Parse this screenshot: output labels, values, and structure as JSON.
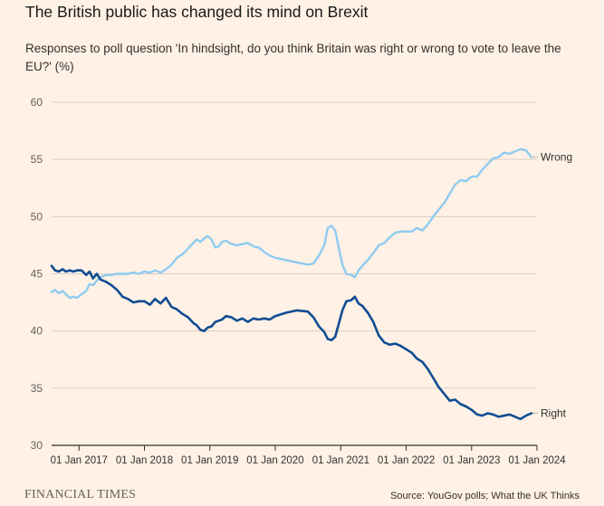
{
  "title": "The British public has changed its mind on Brexit",
  "subtitle": "Responses to poll question 'In hindsight, do you think Britain was right or wrong to vote to leave the EU?' (%)",
  "footer": {
    "brand": "FINANCIAL TIMES",
    "source": "Source: YouGov polls; What the UK Thinks"
  },
  "colors": {
    "background": "#fff1e5",
    "right": "#0f4c92",
    "wrong": "#8ecbf0",
    "grid": "#d9cdc3",
    "axis": "#33302e"
  },
  "chart_data": {
    "type": "line",
    "title": "",
    "xlabel": "",
    "ylabel": "",
    "ylim": [
      30,
      60
    ],
    "xlim": [
      "2016-08-01",
      "2024-01-01"
    ],
    "y_ticks": [
      "30",
      "35",
      "40",
      "45",
      "50",
      "55",
      "60"
    ],
    "x_ticks": [
      "01 Jan 2017",
      "01 Jan 2018",
      "01 Jan 2019",
      "01 Jan 2020",
      "01 Jan 2021",
      "01 Jan 2022",
      "01 Jan 2023",
      "01 Jan 2024"
    ],
    "grid": true,
    "legend": "direct-labels-right",
    "series": [
      {
        "name": "Wrong",
        "color": "#8ecbf0",
        "points": [
          [
            "2016-08-01",
            43.4
          ],
          [
            "2016-08-20",
            43.6
          ],
          [
            "2016-09-10",
            43.3
          ],
          [
            "2016-10-01",
            43.5
          ],
          [
            "2016-10-20",
            43.2
          ],
          [
            "2016-11-10",
            42.9
          ],
          [
            "2016-12-01",
            43.0
          ],
          [
            "2016-12-20",
            42.9
          ],
          [
            "2017-01-15",
            43.2
          ],
          [
            "2017-02-10",
            43.5
          ],
          [
            "2017-03-01",
            44.1
          ],
          [
            "2017-03-20",
            44.0
          ],
          [
            "2017-04-10",
            44.4
          ],
          [
            "2017-05-01",
            44.7
          ],
          [
            "2017-06-01",
            44.9
          ],
          [
            "2017-07-01",
            44.9
          ],
          [
            "2017-08-01",
            45.0
          ],
          [
            "2017-09-01",
            45.0
          ],
          [
            "2017-10-01",
            45.0
          ],
          [
            "2017-11-01",
            45.1
          ],
          [
            "2017-12-01",
            45.0
          ],
          [
            "2018-01-01",
            45.2
          ],
          [
            "2018-02-01",
            45.1
          ],
          [
            "2018-03-01",
            45.3
          ],
          [
            "2018-04-01",
            45.1
          ],
          [
            "2018-05-01",
            45.4
          ],
          [
            "2018-06-01",
            45.8
          ],
          [
            "2018-07-01",
            46.4
          ],
          [
            "2018-08-01",
            46.7
          ],
          [
            "2018-09-01",
            47.2
          ],
          [
            "2018-10-01",
            47.7
          ],
          [
            "2018-10-20",
            48.0
          ],
          [
            "2018-11-10",
            47.8
          ],
          [
            "2018-12-01",
            48.1
          ],
          [
            "2018-12-20",
            48.3
          ],
          [
            "2019-01-10",
            48.0
          ],
          [
            "2019-02-01",
            47.3
          ],
          [
            "2019-02-20",
            47.4
          ],
          [
            "2019-03-10",
            47.8
          ],
          [
            "2019-04-01",
            47.9
          ],
          [
            "2019-05-01",
            47.6
          ],
          [
            "2019-06-01",
            47.5
          ],
          [
            "2019-07-01",
            47.6
          ],
          [
            "2019-08-01",
            47.7
          ],
          [
            "2019-09-01",
            47.4
          ],
          [
            "2019-10-01",
            47.3
          ],
          [
            "2019-11-01",
            46.9
          ],
          [
            "2019-12-01",
            46.6
          ],
          [
            "2020-01-01",
            46.4
          ],
          [
            "2020-03-01",
            46.2
          ],
          [
            "2020-05-01",
            46.0
          ],
          [
            "2020-07-01",
            45.8
          ],
          [
            "2020-08-01",
            45.9
          ],
          [
            "2020-09-01",
            46.6
          ],
          [
            "2020-10-01",
            47.5
          ],
          [
            "2020-10-20",
            49.0
          ],
          [
            "2020-11-10",
            49.2
          ],
          [
            "2020-12-01",
            48.8
          ],
          [
            "2020-12-20",
            47.3
          ],
          [
            "2021-01-10",
            45.8
          ],
          [
            "2021-02-01",
            45.0
          ],
          [
            "2021-03-01",
            44.9
          ],
          [
            "2021-03-20",
            44.7
          ],
          [
            "2021-04-10",
            45.3
          ],
          [
            "2021-05-01",
            45.7
          ],
          [
            "2021-06-01",
            46.2
          ],
          [
            "2021-07-01",
            46.8
          ],
          [
            "2021-08-01",
            47.5
          ],
          [
            "2021-09-01",
            47.7
          ],
          [
            "2021-10-01",
            48.2
          ],
          [
            "2021-11-01",
            48.6
          ],
          [
            "2021-12-01",
            48.7
          ],
          [
            "2022-01-01",
            48.7
          ],
          [
            "2022-02-01",
            48.7
          ],
          [
            "2022-03-01",
            49.0
          ],
          [
            "2022-04-01",
            48.8
          ],
          [
            "2022-05-01",
            49.3
          ],
          [
            "2022-06-01",
            50.0
          ],
          [
            "2022-07-01",
            50.6
          ],
          [
            "2022-08-01",
            51.2
          ],
          [
            "2022-09-01",
            52.0
          ],
          [
            "2022-10-01",
            52.8
          ],
          [
            "2022-11-01",
            53.2
          ],
          [
            "2022-12-01",
            53.1
          ],
          [
            "2023-01-01",
            53.5
          ],
          [
            "2023-02-01",
            53.5
          ],
          [
            "2023-03-01",
            54.1
          ],
          [
            "2023-04-01",
            54.6
          ],
          [
            "2023-05-01",
            55.1
          ],
          [
            "2023-06-01",
            55.2
          ],
          [
            "2023-07-01",
            55.6
          ],
          [
            "2023-08-01",
            55.5
          ],
          [
            "2023-09-01",
            55.7
          ],
          [
            "2023-10-01",
            55.9
          ],
          [
            "2023-11-01",
            55.8
          ],
          [
            "2023-12-01",
            55.2
          ]
        ]
      },
      {
        "name": "Right",
        "color": "#0f4c92",
        "points": [
          [
            "2016-08-01",
            45.7
          ],
          [
            "2016-08-20",
            45.3
          ],
          [
            "2016-09-10",
            45.2
          ],
          [
            "2016-10-01",
            45.4
          ],
          [
            "2016-10-20",
            45.2
          ],
          [
            "2016-11-10",
            45.3
          ],
          [
            "2016-12-01",
            45.2
          ],
          [
            "2016-12-20",
            45.3
          ],
          [
            "2017-01-15",
            45.3
          ],
          [
            "2017-02-10",
            44.9
          ],
          [
            "2017-03-01",
            45.2
          ],
          [
            "2017-03-20",
            44.6
          ],
          [
            "2017-04-10",
            45.0
          ],
          [
            "2017-05-01",
            44.5
          ],
          [
            "2017-06-01",
            44.3
          ],
          [
            "2017-07-01",
            44.0
          ],
          [
            "2017-08-01",
            43.6
          ],
          [
            "2017-09-01",
            43.0
          ],
          [
            "2017-10-01",
            42.8
          ],
          [
            "2017-11-01",
            42.5
          ],
          [
            "2017-12-01",
            42.6
          ],
          [
            "2018-01-01",
            42.6
          ],
          [
            "2018-02-01",
            42.3
          ],
          [
            "2018-03-01",
            42.8
          ],
          [
            "2018-04-01",
            42.4
          ],
          [
            "2018-05-01",
            42.9
          ],
          [
            "2018-06-01",
            42.1
          ],
          [
            "2018-07-01",
            41.9
          ],
          [
            "2018-08-01",
            41.5
          ],
          [
            "2018-09-01",
            41.2
          ],
          [
            "2018-10-01",
            40.7
          ],
          [
            "2018-10-20",
            40.5
          ],
          [
            "2018-11-10",
            40.1
          ],
          [
            "2018-12-01",
            40.0
          ],
          [
            "2018-12-20",
            40.3
          ],
          [
            "2019-01-10",
            40.4
          ],
          [
            "2019-02-01",
            40.8
          ],
          [
            "2019-02-20",
            40.9
          ],
          [
            "2019-03-10",
            41.0
          ],
          [
            "2019-04-01",
            41.3
          ],
          [
            "2019-05-01",
            41.2
          ],
          [
            "2019-06-01",
            40.9
          ],
          [
            "2019-07-01",
            41.1
          ],
          [
            "2019-08-01",
            40.8
          ],
          [
            "2019-09-01",
            41.1
          ],
          [
            "2019-10-01",
            41.0
          ],
          [
            "2019-11-01",
            41.1
          ],
          [
            "2019-12-01",
            41.0
          ],
          [
            "2020-01-01",
            41.3
          ],
          [
            "2020-03-01",
            41.6
          ],
          [
            "2020-05-01",
            41.8
          ],
          [
            "2020-07-01",
            41.7
          ],
          [
            "2020-08-01",
            41.2
          ],
          [
            "2020-09-01",
            40.4
          ],
          [
            "2020-10-01",
            39.9
          ],
          [
            "2020-10-20",
            39.3
          ],
          [
            "2020-11-10",
            39.2
          ],
          [
            "2020-12-01",
            39.5
          ],
          [
            "2020-12-20",
            40.6
          ],
          [
            "2021-01-10",
            41.8
          ],
          [
            "2021-02-01",
            42.6
          ],
          [
            "2021-03-01",
            42.7
          ],
          [
            "2021-03-20",
            43.0
          ],
          [
            "2021-04-10",
            42.4
          ],
          [
            "2021-05-01",
            42.2
          ],
          [
            "2021-06-01",
            41.6
          ],
          [
            "2021-07-01",
            40.8
          ],
          [
            "2021-08-01",
            39.6
          ],
          [
            "2021-09-01",
            39.0
          ],
          [
            "2021-10-01",
            38.8
          ],
          [
            "2021-11-01",
            38.9
          ],
          [
            "2021-12-01",
            38.7
          ],
          [
            "2022-01-01",
            38.4
          ],
          [
            "2022-02-01",
            38.1
          ],
          [
            "2022-03-01",
            37.6
          ],
          [
            "2022-04-01",
            37.3
          ],
          [
            "2022-05-01",
            36.7
          ],
          [
            "2022-06-01",
            35.9
          ],
          [
            "2022-07-01",
            35.1
          ],
          [
            "2022-08-01",
            34.5
          ],
          [
            "2022-09-01",
            33.9
          ],
          [
            "2022-10-01",
            34.0
          ],
          [
            "2022-11-01",
            33.6
          ],
          [
            "2022-12-01",
            33.4
          ],
          [
            "2023-01-01",
            33.1
          ],
          [
            "2023-02-01",
            32.7
          ],
          [
            "2023-03-01",
            32.6
          ],
          [
            "2023-04-01",
            32.8
          ],
          [
            "2023-05-01",
            32.7
          ],
          [
            "2023-06-01",
            32.5
          ],
          [
            "2023-07-01",
            32.6
          ],
          [
            "2023-08-01",
            32.7
          ],
          [
            "2023-09-01",
            32.5
          ],
          [
            "2023-10-01",
            32.3
          ],
          [
            "2023-11-01",
            32.6
          ],
          [
            "2023-12-01",
            32.8
          ]
        ]
      }
    ]
  }
}
